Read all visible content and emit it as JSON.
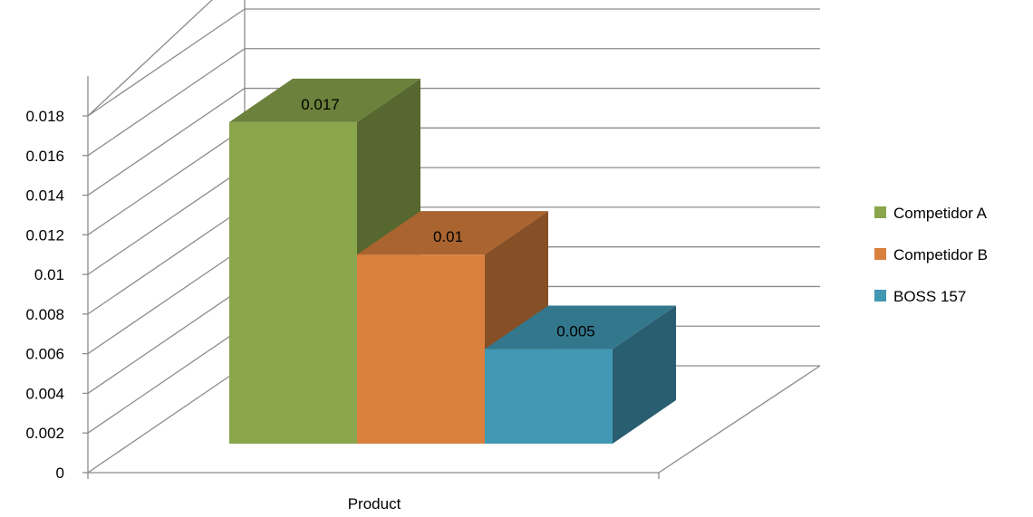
{
  "chart_data": {
    "type": "bar",
    "variant": "3d-clustered-column",
    "categories": [
      "Product"
    ],
    "series": [
      {
        "name": "Competidor A",
        "values": [
          0.017
        ],
        "color": "#8aa64c"
      },
      {
        "name": "Competidor B",
        "values": [
          0.01
        ],
        "color": "#d9803e"
      },
      {
        "name": "BOSS 157",
        "values": [
          0.005
        ],
        "color": "#4198b3"
      }
    ],
    "data_labels": [
      "0.017",
      "0.01",
      "0.005"
    ],
    "y_ticks": [
      "0",
      "0.002",
      "0.004",
      "0.006",
      "0.008",
      "0.01",
      "0.012",
      "0.014",
      "0.016",
      "0.018"
    ],
    "ylim": [
      0,
      0.018
    ],
    "grid": true,
    "legend": "right",
    "title": "",
    "xlabel": "",
    "ylabel": ""
  }
}
